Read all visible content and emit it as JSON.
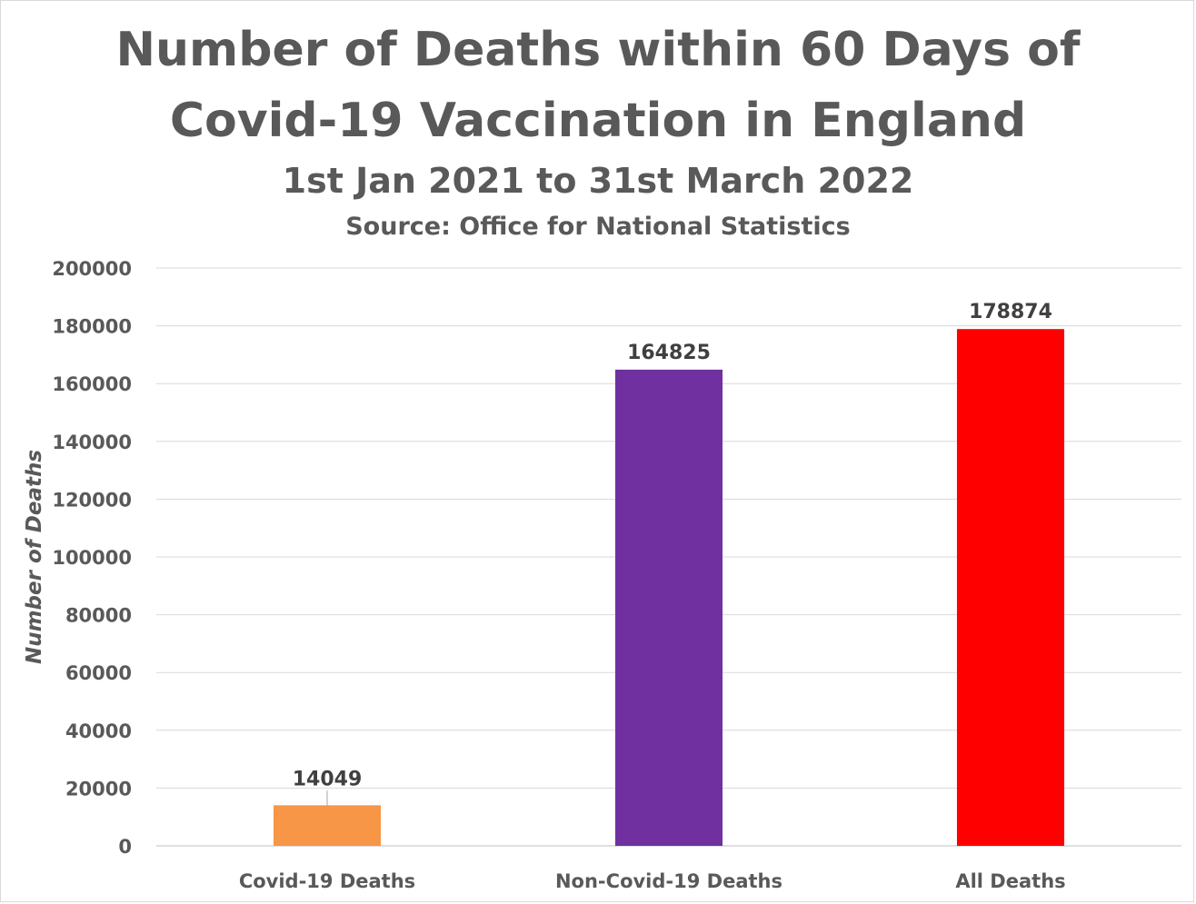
{
  "chart_data": {
    "type": "bar",
    "title_lines": [
      "Number of Deaths within 60 Days of",
      "Covid-19 Vaccination in England"
    ],
    "subtitle": "1st Jan 2021 to 31st March 2022",
    "source": "Source: Office for National Statistics",
    "xlabel": "",
    "ylabel": "Number of Deaths",
    "ylim": [
      0,
      200000
    ],
    "yticks": [
      0,
      20000,
      40000,
      60000,
      80000,
      100000,
      120000,
      140000,
      160000,
      180000,
      200000
    ],
    "grid": true,
    "categories": [
      "Covid-19 Deaths",
      "Non-Covid-19 Deaths",
      "All Deaths"
    ],
    "values": [
      14049,
      164825,
      178874
    ],
    "colors": [
      "#f79646",
      "#7030a0",
      "#ff0000"
    ],
    "data_labels": [
      "14049",
      "164825",
      "178874"
    ]
  }
}
